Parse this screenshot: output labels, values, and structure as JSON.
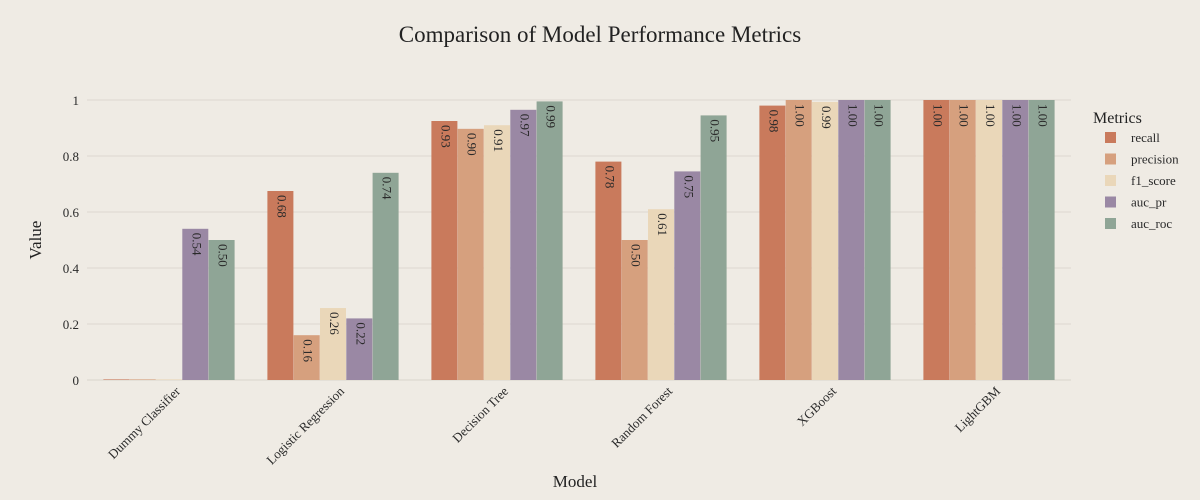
{
  "chart_data": {
    "type": "bar",
    "title": "Comparison of Model Performance Metrics",
    "xlabel": "Model",
    "ylabel": "Value",
    "ylim": [
      0,
      1.05
    ],
    "yticks": [
      0,
      0.2,
      0.4,
      0.6,
      0.8,
      1
    ],
    "ytick_labels": [
      "0",
      "0.2",
      "0.4",
      "0.6",
      "0.8",
      "1"
    ],
    "grid": true,
    "legend_title": "Metrics",
    "legend_position": "right",
    "categories": [
      "Dummy Classifier",
      "Logistic Regression",
      "Decision Tree",
      "Random Forest",
      "XGBoost",
      "LightGBM"
    ],
    "series": [
      {
        "name": "recall",
        "color": "#c97a5c",
        "values": [
          0.0,
          0.675,
          0.925,
          0.78,
          0.98,
          1.0
        ],
        "labels": [
          "",
          "0.68",
          "0.93",
          "0.78",
          "0.98",
          "1.00"
        ]
      },
      {
        "name": "precision",
        "color": "#d6a07e",
        "values": [
          0.0,
          0.16,
          0.897,
          0.5,
          1.0,
          1.0
        ],
        "labels": [
          "",
          "0.16",
          "0.90",
          "0.50",
          "1.00",
          "1.00"
        ]
      },
      {
        "name": "f1_score",
        "color": "#ead7b9",
        "values": [
          0.0,
          0.257,
          0.91,
          0.61,
          0.993,
          1.0
        ],
        "labels": [
          "",
          "0.26",
          "0.91",
          "0.61",
          "0.99",
          "1.00"
        ]
      },
      {
        "name": "auc_pr",
        "color": "#9a88a4",
        "values": [
          0.54,
          0.22,
          0.965,
          0.745,
          1.0,
          1.0
        ],
        "labels": [
          "0.54",
          "0.22",
          "0.97",
          "0.75",
          "1.00",
          "1.00"
        ]
      },
      {
        "name": "auc_roc",
        "color": "#8fa596",
        "values": [
          0.5,
          0.74,
          0.995,
          0.945,
          1.0,
          1.0
        ],
        "labels": [
          "0.50",
          "0.74",
          "0.99",
          "0.95",
          "1.00",
          "1.00"
        ]
      }
    ]
  }
}
